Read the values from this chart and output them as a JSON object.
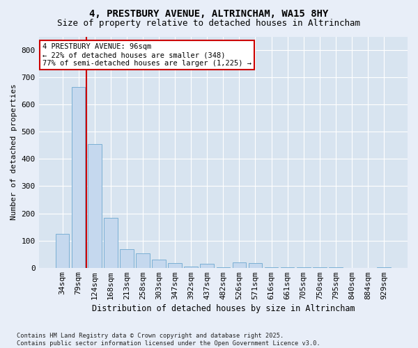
{
  "title": "4, PRESTBURY AVENUE, ALTRINCHAM, WA15 8HY",
  "subtitle": "Size of property relative to detached houses in Altrincham",
  "xlabel": "Distribution of detached houses by size in Altrincham",
  "ylabel": "Number of detached properties",
  "categories": [
    "34sqm",
    "79sqm",
    "124sqm",
    "168sqm",
    "213sqm",
    "258sqm",
    "303sqm",
    "347sqm",
    "392sqm",
    "437sqm",
    "482sqm",
    "526sqm",
    "571sqm",
    "616sqm",
    "661sqm",
    "705sqm",
    "750sqm",
    "795sqm",
    "840sqm",
    "884sqm",
    "929sqm"
  ],
  "values": [
    125,
    665,
    455,
    183,
    68,
    52,
    30,
    18,
    5,
    15,
    2,
    20,
    17,
    2,
    2,
    3,
    1,
    1,
    0,
    0,
    3
  ],
  "bar_color": "#c5d8ee",
  "bar_edge_color": "#7aafd4",
  "red_line_x": 1.5,
  "annotation_line1": "4 PRESTBURY AVENUE: 96sqm",
  "annotation_line2": "← 22% of detached houses are smaller (348)",
  "annotation_line3": "77% of semi-detached houses are larger (1,225) →",
  "annotation_box_color": "#ffffff",
  "annotation_box_edge": "#cc0000",
  "ylim": [
    0,
    850
  ],
  "yticks": [
    0,
    100,
    200,
    300,
    400,
    500,
    600,
    700,
    800
  ],
  "title_fontsize": 10,
  "subtitle_fontsize": 9,
  "xlabel_fontsize": 8.5,
  "ylabel_fontsize": 8,
  "tick_fontsize": 8,
  "footer_text": "Contains HM Land Registry data © Crown copyright and database right 2025.\nContains public sector information licensed under the Open Government Licence v3.0.",
  "background_color": "#e8eef8",
  "grid_color": "#ffffff",
  "plot_bg_color": "#d8e4f0"
}
